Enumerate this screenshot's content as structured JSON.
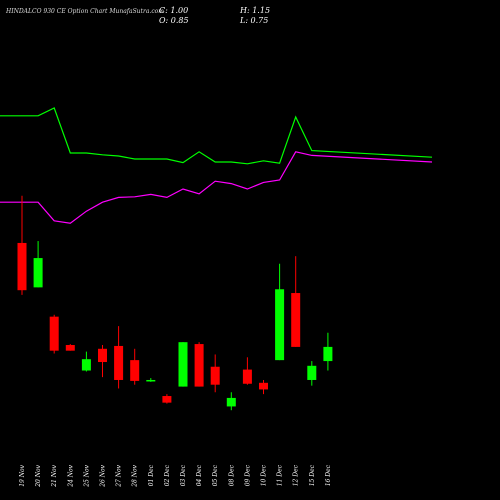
{
  "header": {
    "title": "HINDALCO 930  CE Option  Chart MunafaSutra.com",
    "close": "C: 1.00",
    "open": "O: 0.85",
    "high": "H: 1.15",
    "low": "L: 0.75"
  },
  "colors": {
    "background": "#000000",
    "up": "#00ff00",
    "down": "#ff0000",
    "line_upper": "#00ff00",
    "line_lower": "#ff00ff",
    "axis_text": "#ffffff"
  },
  "chart_data": {
    "type": "candlestick",
    "title": "HINDALCO 930  CE Option  Chart MunafaSutra.com",
    "grid": false,
    "categories": [
      "19 Nov",
      "20 Nov",
      "21 Nov",
      "24 Nov",
      "25 Nov",
      "26 Nov",
      "27 Nov",
      "28 Nov",
      "01 Dec",
      "02 Dec",
      "03 Dec",
      "04 Dec",
      "05 Dec",
      "08 Dec",
      "09 Dec",
      "10 Dec",
      "11 Dec",
      "12 Dec",
      "15 Dec",
      "16 Dec"
    ],
    "candles": [
      {
        "o": 2.1,
        "h": 2.6,
        "l": 1.55,
        "c": 1.6
      },
      {
        "o": 1.63,
        "h": 2.12,
        "l": 1.63,
        "c": 1.94
      },
      {
        "o": 1.32,
        "h": 1.34,
        "l": 0.93,
        "c": 0.96
      },
      {
        "o": 1.02,
        "h": 1.03,
        "l": 0.96,
        "c": 0.96
      },
      {
        "o": 0.75,
        "h": 0.95,
        "l": 0.74,
        "c": 0.87
      },
      {
        "o": 0.98,
        "h": 1.02,
        "l": 0.68,
        "c": 0.84
      },
      {
        "o": 1.01,
        "h": 1.22,
        "l": 0.56,
        "c": 0.65
      },
      {
        "o": 0.86,
        "h": 0.98,
        "l": 0.6,
        "c": 0.64
      },
      {
        "o": 0.65,
        "h": 0.67,
        "l": 0.63,
        "c": 0.65
      },
      {
        "o": 0.48,
        "h": 0.5,
        "l": 0.4,
        "c": 0.41
      },
      {
        "o": 0.58,
        "h": 1.05,
        "l": 0.58,
        "c": 1.05
      },
      {
        "o": 1.03,
        "h": 1.05,
        "l": 0.58,
        "c": 0.58
      },
      {
        "o": 0.79,
        "h": 0.92,
        "l": 0.52,
        "c": 0.6
      },
      {
        "o": 0.37,
        "h": 0.52,
        "l": 0.33,
        "c": 0.46
      },
      {
        "o": 0.76,
        "h": 0.89,
        "l": 0.6,
        "c": 0.61
      },
      {
        "o": 0.62,
        "h": 0.65,
        "l": 0.5,
        "c": 0.55
      },
      {
        "o": 0.86,
        "h": 1.88,
        "l": 0.86,
        "c": 1.61
      },
      {
        "o": 1.57,
        "h": 1.96,
        "l": 1.0,
        "c": 1.0
      },
      {
        "o": 0.65,
        "h": 0.85,
        "l": 0.59,
        "c": 0.8
      },
      {
        "o": 0.85,
        "h": 1.15,
        "l": 0.75,
        "c": 1.0
      }
    ],
    "line_upper": [
      3.32,
      3.32,
      3.45,
      2.7,
      2.7,
      2.67,
      2.65,
      2.6,
      2.6,
      2.6,
      2.54,
      2.72,
      2.55,
      2.55,
      2.52,
      2.57,
      2.53,
      3.3,
      2.74,
      2.63
    ],
    "line_lower": [
      1.88,
      1.88,
      1.57,
      1.53,
      1.73,
      1.88,
      1.96,
      1.97,
      2.01,
      1.96,
      2.1,
      2.02,
      2.23,
      2.19,
      2.1,
      2.21,
      2.25,
      2.72,
      2.66,
      2.55
    ]
  }
}
